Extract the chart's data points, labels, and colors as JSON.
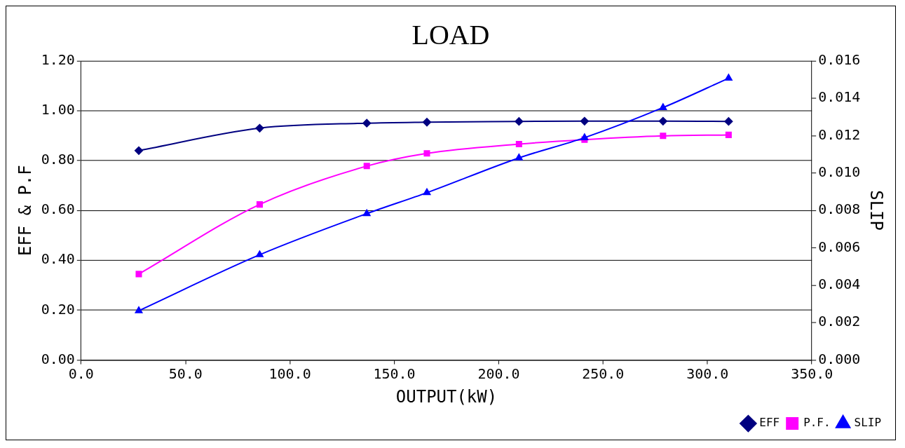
{
  "chart_data": {
    "type": "line",
    "title": "LOAD",
    "xlabel": "OUTPUT(kW)",
    "ylabel": "EFF & P.F",
    "y2label": "SLIP",
    "x": [
      27.6,
      85.5,
      136.8,
      165.6,
      209.7,
      241.1,
      278.7,
      310.1
    ],
    "series": [
      {
        "name": "EFF",
        "color": "#000080",
        "marker": "diamond",
        "values": [
          0.84,
          0.93,
          0.95,
          0.954,
          0.957,
          0.958,
          0.958,
          0.957
        ]
      },
      {
        "name": "P.F.",
        "color": "#ff00ff",
        "marker": "square",
        "values": [
          0.345,
          0.624,
          0.778,
          0.829,
          0.866,
          0.884,
          0.899,
          0.903
        ]
      },
      {
        "name": "SLIP",
        "color": "#0000ff",
        "marker": "triangle",
        "axis": "y2",
        "values": [
          0.00264,
          0.00563,
          0.00783,
          0.00895,
          0.01081,
          0.01189,
          0.0135,
          0.01507
        ]
      }
    ],
    "xlim": [
      0,
      350
    ],
    "xticks": [
      {
        "value": 0,
        "label": "0.0"
      },
      {
        "value": 50,
        "label": "50.0"
      },
      {
        "value": 100,
        "label": "100.0"
      },
      {
        "value": 150,
        "label": "150.0"
      },
      {
        "value": 200,
        "label": "200.0"
      },
      {
        "value": 250,
        "label": "250.0"
      },
      {
        "value": 300,
        "label": "300.0"
      },
      {
        "value": 350,
        "label": "350.0"
      }
    ],
    "ylim": [
      0,
      1.2
    ],
    "yticks": [
      {
        "value": 0,
        "label": "0.00"
      },
      {
        "value": 0.2,
        "label": "0.20"
      },
      {
        "value": 0.4,
        "label": "0.40"
      },
      {
        "value": 0.6,
        "label": "0.60"
      },
      {
        "value": 0.8,
        "label": "0.80"
      },
      {
        "value": 1,
        "label": "1.00"
      },
      {
        "value": 1.2,
        "label": "1.20"
      }
    ],
    "y2lim": [
      0,
      0.016
    ],
    "y2ticks": [
      {
        "value": 0,
        "label": "0.000"
      },
      {
        "value": 0.002,
        "label": "0.002"
      },
      {
        "value": 0.004,
        "label": "0.004"
      },
      {
        "value": 0.006,
        "label": "0.006"
      },
      {
        "value": 0.008,
        "label": "0.008"
      },
      {
        "value": 0.01,
        "label": "0.010"
      },
      {
        "value": 0.012,
        "label": "0.012"
      },
      {
        "value": 0.014,
        "label": "0.014"
      },
      {
        "value": 0.016,
        "label": "0.016"
      }
    ],
    "grid": "y",
    "legend": "bottom right",
    "line_style": "solid"
  }
}
